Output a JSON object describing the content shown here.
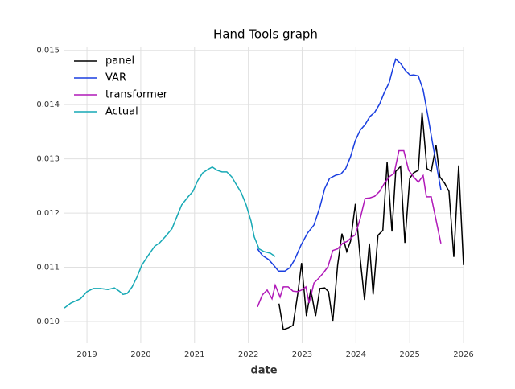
{
  "chart_data": {
    "type": "line",
    "title": "Hand Tools graph",
    "x_label": "date",
    "xlim": [
      2018.58,
      2026.0
    ],
    "ylim": [
      0.0096,
      0.01507
    ],
    "xticks": [
      2019,
      2020,
      2021,
      2022,
      2023,
      2024,
      2025,
      2026
    ],
    "yticks": [
      {
        "value": 0.01,
        "label": "0.010"
      },
      0.011,
      0.012,
      0.013,
      0.014,
      0.015
    ],
    "grid": true,
    "legend": "upper-left",
    "series": [
      {
        "name": "panel",
        "color": "#000000",
        "x": [
          2022.57,
          2022.65,
          2022.74,
          2022.83,
          2022.92,
          2022.99,
          2023.08,
          2023.16,
          2023.25,
          2023.33,
          2023.42,
          2023.49,
          2023.57,
          2023.66,
          2023.74,
          2023.83,
          2023.9,
          2023.99,
          2024.08,
          2024.16,
          2024.25,
          2024.32,
          2024.41,
          2024.5,
          2024.58,
          2024.67,
          2024.74,
          2024.83,
          2024.91,
          2025.0,
          2025.07,
          2025.16,
          2025.23,
          2025.32,
          2025.4,
          2025.49,
          2025.56,
          2025.65,
          2025.73,
          2025.82,
          2025.91,
          2026.0
        ],
        "values": [
          0.01033,
          0.00985,
          0.00988,
          0.00993,
          0.01052,
          0.01108,
          0.0101,
          0.01059,
          0.0101,
          0.01061,
          0.01062,
          0.01055,
          0.01,
          0.01104,
          0.01162,
          0.01129,
          0.01148,
          0.01217,
          0.01116,
          0.0104,
          0.01144,
          0.0105,
          0.01159,
          0.01168,
          0.01294,
          0.01166,
          0.01277,
          0.01286,
          0.01145,
          0.01264,
          0.01274,
          0.01279,
          0.01386,
          0.01282,
          0.01277,
          0.01325,
          0.01267,
          0.01255,
          0.0124,
          0.01119,
          0.01288,
          0.01104
        ]
      },
      {
        "name": "VAR",
        "color": "#1a3fe0",
        "x": [
          2022.17,
          2022.26,
          2022.38,
          2022.47,
          2022.56,
          2022.68,
          2022.77,
          2022.86,
          2022.98,
          2023.1,
          2023.22,
          2023.33,
          2023.42,
          2023.51,
          2023.63,
          2023.72,
          2023.81,
          2023.9,
          2023.99,
          2024.08,
          2024.17,
          2024.26,
          2024.35,
          2024.44,
          2024.53,
          2024.62,
          2024.68,
          2024.74,
          2024.83,
          2024.92,
          2025.01,
          2025.07,
          2025.16,
          2025.25,
          2025.34,
          2025.43,
          2025.58
        ],
        "values": [
          0.01134,
          0.01122,
          0.01114,
          0.01104,
          0.01093,
          0.01093,
          0.01099,
          0.01114,
          0.01141,
          0.01163,
          0.01178,
          0.01211,
          0.01245,
          0.01264,
          0.0127,
          0.01272,
          0.01282,
          0.01304,
          0.01334,
          0.01353,
          0.01363,
          0.01378,
          0.01386,
          0.01401,
          0.01423,
          0.01441,
          0.01464,
          0.01484,
          0.01476,
          0.01463,
          0.01454,
          0.01455,
          0.01453,
          0.01427,
          0.01378,
          0.01326,
          0.01243
        ]
      },
      {
        "name": "transformer",
        "color": "#b019b8",
        "x": [
          2022.17,
          2022.26,
          2022.35,
          2022.44,
          2022.5,
          2022.59,
          2022.65,
          2022.74,
          2022.83,
          2022.92,
          2023.01,
          2023.07,
          2023.13,
          2023.22,
          2023.3,
          2023.39,
          2023.48,
          2023.57,
          2023.66,
          2023.75,
          2023.84,
          2023.93,
          2023.99,
          2024.08,
          2024.17,
          2024.26,
          2024.35,
          2024.44,
          2024.53,
          2024.62,
          2024.71,
          2024.8,
          2024.89,
          2024.98,
          2025.07,
          2025.16,
          2025.25,
          2025.31,
          2025.4,
          2025.58
        ],
        "values": [
          0.01027,
          0.01049,
          0.01058,
          0.01042,
          0.01067,
          0.01045,
          0.01064,
          0.01064,
          0.01056,
          0.01055,
          0.01059,
          0.01064,
          0.01034,
          0.01071,
          0.01079,
          0.01089,
          0.01101,
          0.01131,
          0.01134,
          0.01144,
          0.01148,
          0.01156,
          0.0116,
          0.0119,
          0.01227,
          0.01228,
          0.01231,
          0.0124,
          0.01255,
          0.01267,
          0.01273,
          0.01315,
          0.01315,
          0.01279,
          0.01267,
          0.01257,
          0.01269,
          0.0123,
          0.0123,
          0.01144
        ]
      },
      {
        "name": "Actual",
        "color": "#17a9b5",
        "x": [
          2018.58,
          2018.7,
          2018.88,
          2019.0,
          2019.12,
          2019.25,
          2019.39,
          2019.51,
          2019.6,
          2019.67,
          2019.75,
          2019.84,
          2019.93,
          2020.02,
          2020.14,
          2020.26,
          2020.35,
          2020.46,
          2020.58,
          2020.67,
          2020.76,
          2020.88,
          2020.97,
          2021.06,
          2021.15,
          2021.24,
          2021.33,
          2021.42,
          2021.51,
          2021.6,
          2021.69,
          2021.78,
          2021.87,
          2021.96,
          2022.05,
          2022.11,
          2022.2,
          2022.29,
          2022.41,
          2022.5
        ],
        "values": [
          0.01025,
          0.01034,
          0.01042,
          0.01055,
          0.01061,
          0.01061,
          0.01059,
          0.01062,
          0.01056,
          0.0105,
          0.01052,
          0.01064,
          0.01082,
          0.01104,
          0.01122,
          0.01139,
          0.01145,
          0.01157,
          0.01171,
          0.01193,
          0.01215,
          0.0123,
          0.0124,
          0.0126,
          0.01274,
          0.0128,
          0.01285,
          0.01279,
          0.01276,
          0.01276,
          0.01267,
          0.01252,
          0.01237,
          0.01215,
          0.01185,
          0.01156,
          0.01134,
          0.01129,
          0.01126,
          0.0112
        ]
      }
    ]
  }
}
